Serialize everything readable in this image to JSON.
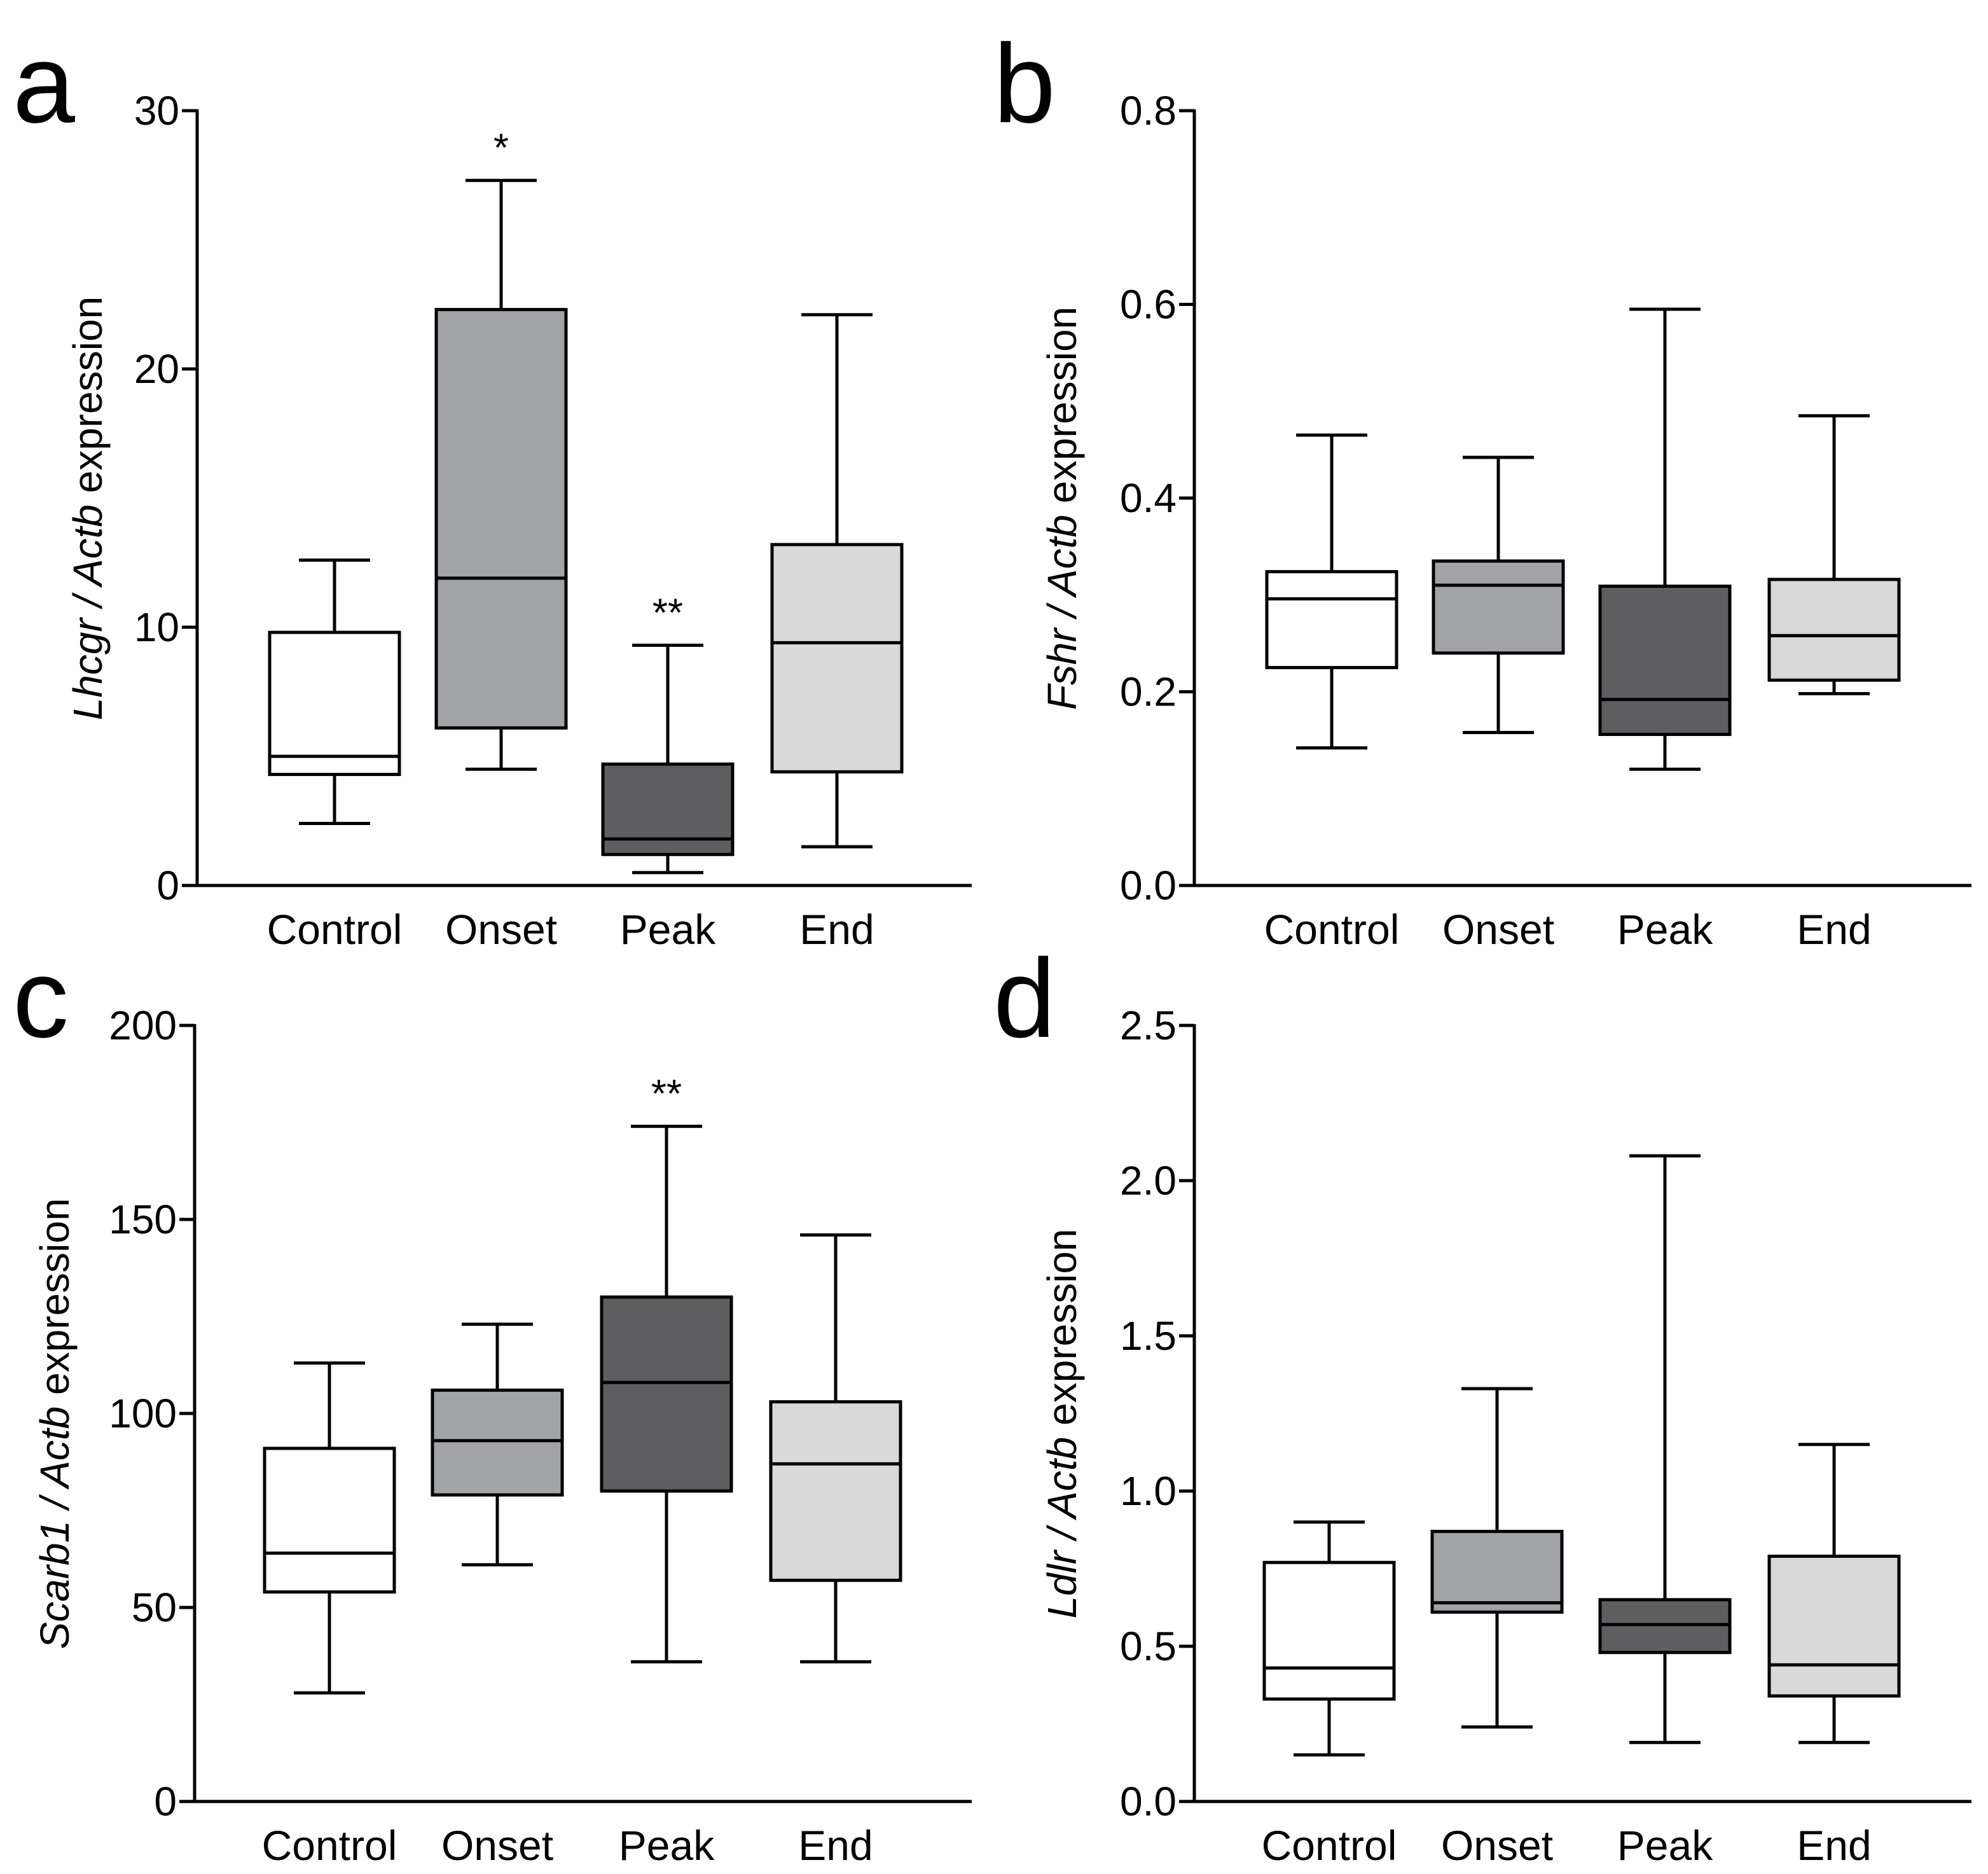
{
  "chart_data": [
    {
      "type": "box",
      "panel": "a",
      "categories": [
        "Control",
        "Onset",
        "Peak",
        "End"
      ],
      "ylabel_italic": "Lhcgr / Actb",
      "ylabel_rest": " expression",
      "ylim": [
        0,
        30
      ],
      "yticks": [
        0,
        10,
        20,
        30
      ],
      "ytick_labels": [
        "0",
        "10",
        "20",
        "30"
      ],
      "boxes": [
        {
          "min": 2.4,
          "q1": 4.3,
          "median": 5.0,
          "q3": 9.8,
          "max": 12.6,
          "annotation": ""
        },
        {
          "min": 4.5,
          "q1": 6.1,
          "median": 11.9,
          "q3": 22.3,
          "max": 27.3,
          "annotation": "*"
        },
        {
          "min": 0.5,
          "q1": 1.2,
          "median": 1.8,
          "q3": 4.7,
          "max": 9.3,
          "annotation": "**"
        },
        {
          "min": 1.5,
          "q1": 4.4,
          "median": 9.4,
          "q3": 13.2,
          "max": 22.1,
          "annotation": ""
        }
      ]
    },
    {
      "type": "box",
      "panel": "b",
      "categories": [
        "Control",
        "Onset",
        "Peak",
        "End"
      ],
      "ylabel_italic": "Fshr / Actb",
      "ylabel_rest": " expression",
      "ylim": [
        0,
        0.8
      ],
      "yticks": [
        0,
        0.2,
        0.4,
        0.6,
        0.8
      ],
      "ytick_labels": [
        "0.0",
        "0.2",
        "0.4",
        "0.6",
        "0.8"
      ],
      "boxes": [
        {
          "min": 0.142,
          "q1": 0.225,
          "median": 0.296,
          "q3": 0.324,
          "max": 0.465,
          "annotation": ""
        },
        {
          "min": 0.158,
          "q1": 0.24,
          "median": 0.31,
          "q3": 0.335,
          "max": 0.442,
          "annotation": ""
        },
        {
          "min": 0.12,
          "q1": 0.156,
          "median": 0.192,
          "q3": 0.309,
          "max": 0.595,
          "annotation": ""
        },
        {
          "min": 0.198,
          "q1": 0.212,
          "median": 0.258,
          "q3": 0.316,
          "max": 0.485,
          "annotation": ""
        }
      ]
    },
    {
      "type": "box",
      "panel": "c",
      "categories": [
        "Control",
        "Onset",
        "Peak",
        "End"
      ],
      "ylabel_italic": "Scarb1 / Actb",
      "ylabel_rest": " expression",
      "ylim": [
        0,
        200
      ],
      "yticks": [
        0,
        50,
        100,
        150,
        200
      ],
      "ytick_labels": [
        "0",
        "50",
        "100",
        "150",
        "200"
      ],
      "boxes": [
        {
          "min": 28,
          "q1": 54,
          "median": 64,
          "q3": 91,
          "max": 113,
          "annotation": ""
        },
        {
          "min": 61,
          "q1": 79,
          "median": 93,
          "q3": 106,
          "max": 123,
          "annotation": ""
        },
        {
          "min": 36,
          "q1": 80,
          "median": 108,
          "q3": 130,
          "max": 174,
          "annotation": "**"
        },
        {
          "min": 36,
          "q1": 57,
          "median": 87,
          "q3": 103,
          "max": 146,
          "annotation": ""
        }
      ]
    },
    {
      "type": "box",
      "panel": "d",
      "categories": [
        "Control",
        "Onset",
        "Peak",
        "End"
      ],
      "ylabel_italic": "Ldlr / Actb",
      "ylabel_rest": " expression",
      "ylim": [
        0,
        2.5
      ],
      "yticks": [
        0,
        0.5,
        1.0,
        1.5,
        2.0,
        2.5
      ],
      "ytick_labels": [
        "0.0",
        "0.5",
        "1.0",
        "1.5",
        "2.0",
        "2.5"
      ],
      "boxes": [
        {
          "min": 0.15,
          "q1": 0.33,
          "median": 0.43,
          "q3": 0.77,
          "max": 0.9,
          "annotation": ""
        },
        {
          "min": 0.24,
          "q1": 0.61,
          "median": 0.64,
          "q3": 0.87,
          "max": 1.33,
          "annotation": ""
        },
        {
          "min": 0.19,
          "q1": 0.48,
          "median": 0.57,
          "q3": 0.65,
          "max": 2.08,
          "annotation": ""
        },
        {
          "min": 0.19,
          "q1": 0.34,
          "median": 0.44,
          "q3": 0.79,
          "max": 1.15,
          "annotation": ""
        }
      ]
    }
  ],
  "box_colors": [
    "#ffffff",
    "#a2a3a7",
    "#5e5e60",
    "#d9d9d9"
  ]
}
